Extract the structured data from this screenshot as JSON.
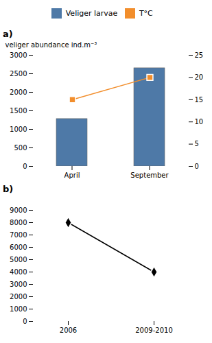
{
  "chart_data": [
    {
      "type": "bar",
      "categories": [
        "April",
        "September"
      ],
      "series": [
        {
          "name": "Veliger larvae",
          "type": "bar",
          "values": [
            1280,
            2650
          ]
        },
        {
          "name": "T°C",
          "type": "line",
          "marker": "square",
          "axis": "y2",
          "values": [
            15,
            20
          ]
        }
      ],
      "ylabel": "veliger abundance ind.m⁻³",
      "ylim": [
        0,
        3000
      ],
      "yticks": [
        0,
        500,
        1000,
        1500,
        2000,
        2500,
        3000
      ],
      "y2lim": [
        0,
        25
      ],
      "y2ticks": [
        0,
        5,
        10,
        15,
        20,
        25
      ],
      "legend": "top",
      "annotations": [
        "a)"
      ]
    },
    {
      "type": "line",
      "categories": [
        "2006",
        "2009-2010"
      ],
      "values": [
        8000,
        4000
      ],
      "marker": "diamond",
      "ylim": [
        0,
        9000
      ],
      "yticks": [
        0,
        1000,
        2000,
        3000,
        4000,
        5000,
        6000,
        7000,
        8000,
        9000
      ],
      "annotations": [
        "b)"
      ]
    }
  ]
}
